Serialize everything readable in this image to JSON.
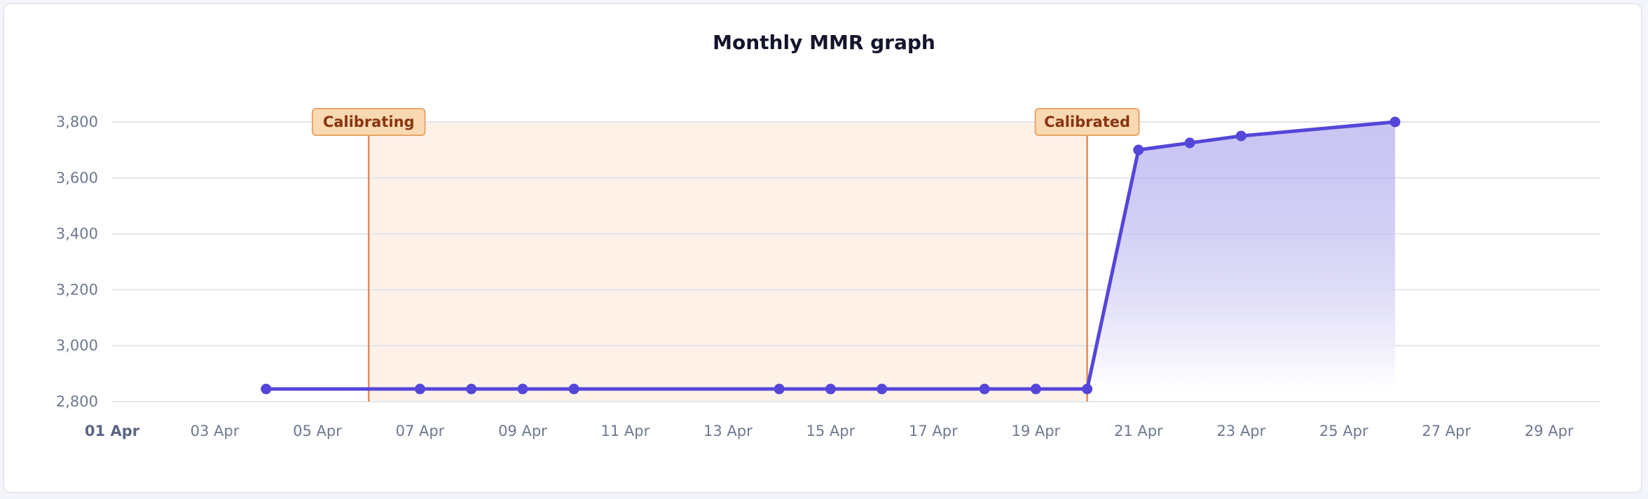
{
  "colors": {
    "line": "#5446d8",
    "area_top": "#8f86e6",
    "band_fill": "#fdf1e8",
    "marker_line": "#e58a5b",
    "flag_fill": "#f9d9b2",
    "flag_border": "#e9a46a",
    "grid": "#e3e5ee"
  },
  "chart_data": {
    "type": "line",
    "title": "Monthly MMR graph",
    "xlabel": "",
    "ylabel": "",
    "x_ticks": [
      "01 Apr",
      "03 Apr",
      "05 Apr",
      "07 Apr",
      "09 Apr",
      "11 Apr",
      "13 Apr",
      "15 Apr",
      "17 Apr",
      "19 Apr",
      "21 Apr",
      "23 Apr",
      "25 Apr",
      "27 Apr",
      "29 Apr"
    ],
    "y_ticks": [
      "2,800",
      "3,000",
      "3,200",
      "3,400",
      "3,600",
      "3,800"
    ],
    "xlim": [
      "2024-04-01",
      "2024-04-30"
    ],
    "ylim": [
      2800,
      3800
    ],
    "grid": true,
    "series": [
      {
        "x": [
          "04 Apr",
          "07 Apr",
          "08 Apr",
          "09 Apr",
          "10 Apr",
          "14 Apr",
          "15 Apr",
          "16 Apr",
          "18 Apr",
          "19 Apr",
          "20 Apr",
          "21 Apr",
          "22 Apr",
          "23 Apr",
          "26 Apr"
        ],
        "values": [
          2845,
          2845,
          2845,
          2845,
          2845,
          2845,
          2845,
          2845,
          2845,
          2845,
          2845,
          3700,
          3725,
          3750,
          3800
        ]
      }
    ],
    "annotations": [
      {
        "x": "06 Apr",
        "label": "Calibrating"
      },
      {
        "x": "20 Apr",
        "label": "Calibrated"
      }
    ],
    "shaded_range": [
      "06 Apr",
      "20 Apr"
    ]
  }
}
